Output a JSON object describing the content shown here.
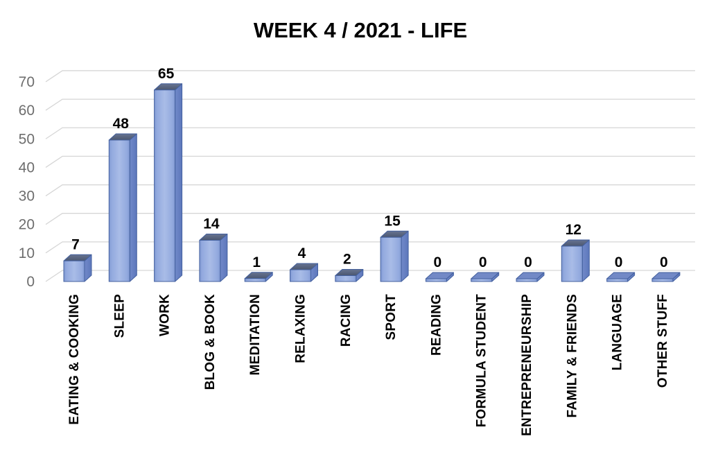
{
  "chart_data": {
    "type": "bar",
    "style": "3d-bar",
    "title": "WEEK 4 / 2021  - LIFE",
    "categories": [
      "EATING & COOKING",
      "SLEEP",
      "WORK",
      "BLOG & BOOK",
      "MEDITATION",
      "RELAXING",
      "RACING",
      "SPORT",
      "READING",
      "FORMULA STUDENT",
      "ENTREPRENEURSHIP",
      "FAMILY & FRIENDS",
      "LANGUAGE",
      "OTHER STUFF"
    ],
    "values": [
      7,
      48,
      65,
      14,
      1,
      4,
      2,
      15,
      0,
      0,
      0,
      12,
      0,
      0
    ],
    "data_labels": [
      7,
      48,
      65,
      14,
      1,
      4,
      2,
      15,
      0,
      0,
      0,
      12,
      0,
      0
    ],
    "xlabel": "",
    "ylabel": "",
    "ylim": [
      0,
      70
    ],
    "yticks": [
      0,
      10,
      20,
      30,
      40,
      50,
      60,
      70
    ],
    "grid": "horizontal-3d",
    "legend": "none",
    "colors": {
      "bar_front": "#8EA9DB",
      "bar_front_light": "#A9BCE7",
      "bar_front_dark": "#7E96D0",
      "bar_side": "#6781C3",
      "bar_side_dark": "#5D77BB",
      "bar_top": "#525E7B",
      "bar_zero_top": "#7289C6",
      "bar_edge": "#44619F",
      "gridline": "#D6D6D6",
      "tick_label": "#6D6D6D",
      "title": "#000000",
      "value_label": "#000000",
      "category_label": "#000000",
      "background": "#FFFFFF"
    }
  }
}
